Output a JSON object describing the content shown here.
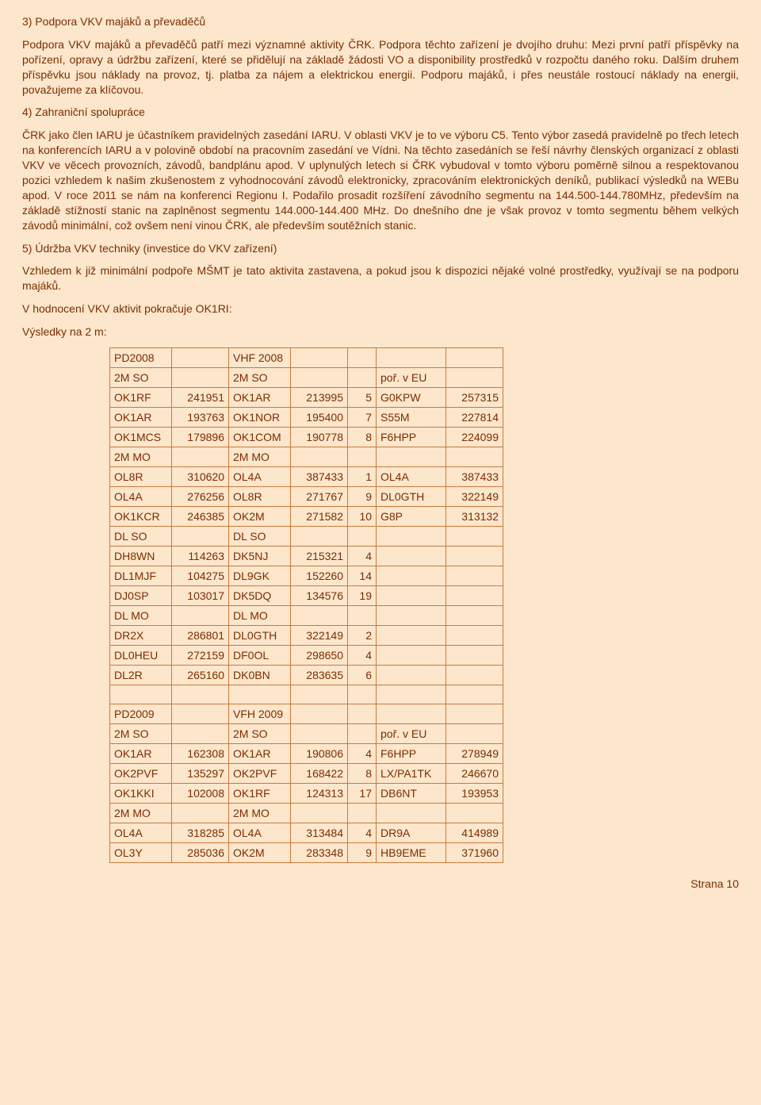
{
  "s3": {
    "title": "3) Podpora VKV majáků a převaděčů",
    "p1": "Podpora VKV majáků a převaděčů patří mezi významné aktivity ČRK. Podpora těchto zařízení je dvojího druhu: Mezi první patří příspěvky na pořízení, opravy a údržbu zařízení, které se přidělují na základě žádosti VO a disponibility prostředků v rozpočtu daného roku. Dalším druhem příspěvku jsou náklady na provoz, tj. platba za nájem a elektrickou energii. Podporu majáků, i přes neustále rostoucí náklady na energii, považujeme za klíčovou."
  },
  "s4": {
    "title": "4) Zahraniční spolupráce",
    "p1": "ČRK jako člen IARU je účastníkem pravidelných zasedání IARU. V oblasti VKV je to ve výboru C5. Tento výbor zasedá pravidelně po třech letech na konferencích IARU a v polovině období na pracovním zasedání ve Vídni. Na těchto zasedáních se řeší návrhy členských organizací z oblasti VKV ve věcech provozních, závodů, bandplánu apod. V uplynulých letech si ČRK vybudoval v tomto výboru poměrně silnou a respektovanou pozici vzhledem k našim zkušenostem z vyhodnocování závodů elektronicky, zpracováním elektronických deníků, publikací výsledků na WEBu apod. V roce 2011 se nám na konferenci Regionu I. Podařilo prosadit rozšíření závodního segmentu na 144.500-144.780MHz, především na základě stížností stanic na zaplněnost segmentu 144.000-144.400 MHz. Do dnešního dne je však provoz v tomto segmentu během velkých závodů minimální, což ovšem není vinou ČRK, ale především soutěžních stanic."
  },
  "s5": {
    "title": "5) Údržba VKV techniky (investice do VKV zařízení)",
    "p1": "Vzhledem k již minimální podpoře MŠMT je tato aktivita zastavena, a pokud jsou k dispozici nějaké volné prostředky, využívají se na podporu majáků.",
    "p2": "V hodnocení VKV aktivit pokračuje OK1RI:",
    "p3": "Výsledky na 2 m:"
  },
  "table": {
    "colwidths": [
      "78px",
      "72px",
      "78px",
      "72px",
      "36px",
      "88px",
      "72px"
    ],
    "rows": [
      [
        "PD2008",
        "",
        "VHF 2008",
        "",
        "",
        "",
        ""
      ],
      [
        "2M SO",
        "",
        "2M SO",
        "",
        "",
        "poř. v EU",
        ""
      ],
      [
        "OK1RF",
        "241951",
        "OK1AR",
        "213995",
        "5",
        "G0KPW",
        "257315"
      ],
      [
        "OK1AR",
        "193763",
        "OK1NOR",
        "195400",
        "7",
        "S55M",
        "227814"
      ],
      [
        "OK1MCS",
        "179896",
        "OK1COM",
        "190778",
        "8",
        "F6HPP",
        "224099"
      ],
      [
        "2M MO",
        "",
        "2M MO",
        "",
        "",
        "",
        ""
      ],
      [
        "OL8R",
        "310620",
        "OL4A",
        "387433",
        "1",
        "OL4A",
        "387433"
      ],
      [
        "OL4A",
        "276256",
        "OL8R",
        "271767",
        "9",
        "DL0GTH",
        "322149"
      ],
      [
        "OK1KCR",
        "246385",
        "OK2M",
        "271582",
        "10",
        "G8P",
        "313132"
      ],
      [
        "DL SO",
        "",
        "DL SO",
        "",
        "",
        "",
        ""
      ],
      [
        "DH8WN",
        "114263",
        "DK5NJ",
        "215321",
        "4",
        "",
        ""
      ],
      [
        "DL1MJF",
        "104275",
        "DL9GK",
        "152260",
        "14",
        "",
        ""
      ],
      [
        "DJ0SP",
        "103017",
        "DK5DQ",
        "134576",
        "19",
        "",
        ""
      ],
      [
        "DL MO",
        "",
        "DL MO",
        "",
        "",
        "",
        ""
      ],
      [
        "DR2X",
        "286801",
        "DL0GTH",
        "322149",
        "2",
        "",
        ""
      ],
      [
        "DL0HEU",
        "272159",
        "DF0OL",
        "298650",
        "4",
        "",
        ""
      ],
      [
        "DL2R",
        "265160",
        "DK0BN",
        "283635",
        "6",
        "",
        ""
      ],
      [
        "",
        "",
        "",
        "",
        "",
        "",
        ""
      ],
      [
        "PD2009",
        "",
        "VFH 2009",
        "",
        "",
        "",
        ""
      ],
      [
        "2M SO",
        "",
        "2M SO",
        "",
        "",
        "poř. v EU",
        ""
      ],
      [
        "OK1AR",
        "162308",
        "OK1AR",
        "190806",
        "4",
        "F6HPP",
        "278949"
      ],
      [
        "OK2PVF",
        "135297",
        "OK2PVF",
        "168422",
        "8",
        "LX/PA1TK",
        "246670"
      ],
      [
        "OK1KKI",
        "102008",
        "OK1RF",
        "124313",
        "17",
        "DB6NT",
        "193953"
      ],
      [
        "2M MO",
        "",
        "2M MO",
        "",
        "",
        "",
        ""
      ],
      [
        "OL4A",
        "318285",
        "OL4A",
        "313484",
        "4",
        "DR9A",
        "414989"
      ],
      [
        "OL3Y",
        "285036",
        "OK2M",
        "283348",
        "9",
        "HB9EME",
        "371960"
      ]
    ],
    "numeric_cols": [
      1,
      3,
      4,
      6
    ]
  },
  "footer": "Strana 10"
}
